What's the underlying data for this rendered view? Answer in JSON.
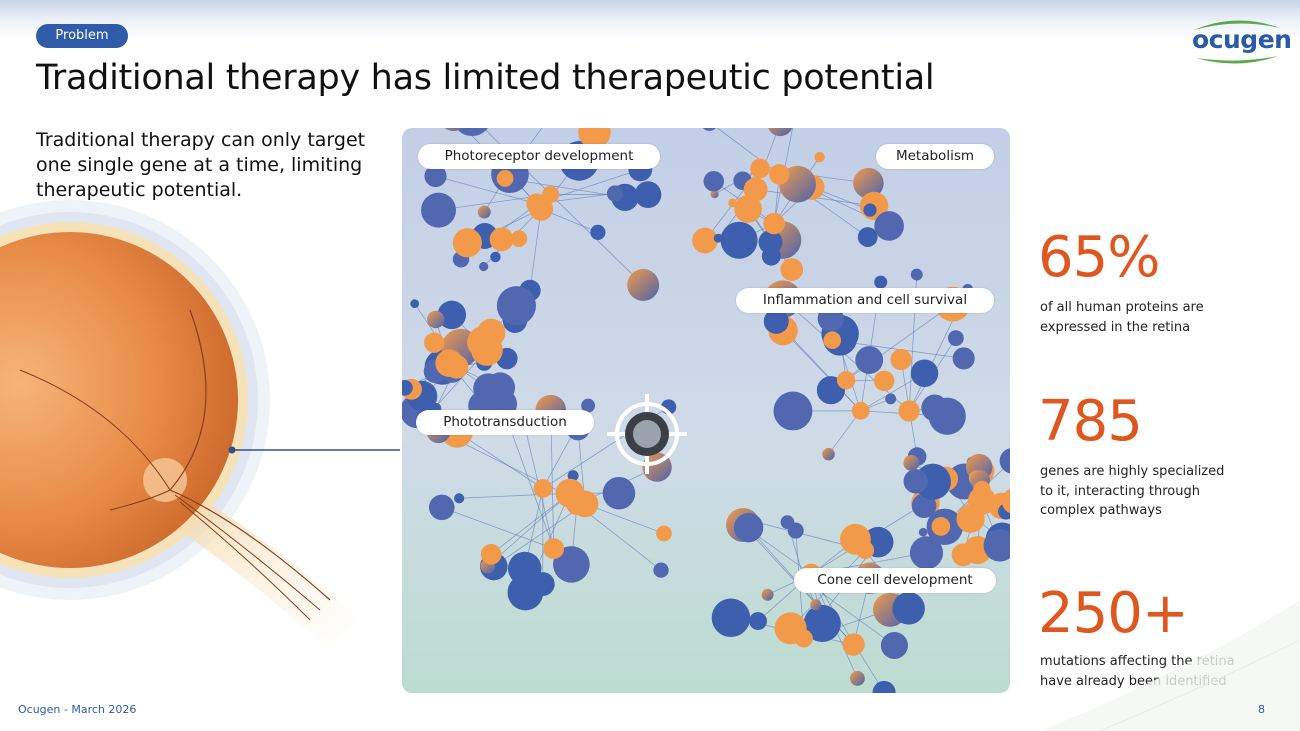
{
  "header": {
    "section_pill": "Problem",
    "title": "Traditional therapy has limited therapeutic potential"
  },
  "logo": {
    "text": "ocugen"
  },
  "intro": {
    "text": "Traditional therapy can only target one single gene at a time, limiting therapeutic potential."
  },
  "network": {
    "labels": {
      "photoreceptor": "Photoreceptor development",
      "metabolism": "Metabolism",
      "inflammation": "Inflammation and cell survival",
      "phototransduction": "Phototransduction",
      "cone": "Cone cell development"
    }
  },
  "stats": [
    {
      "value": "65%",
      "desc_line1": "of all human proteins are",
      "desc_line2": "expressed in the retina"
    },
    {
      "value": "785",
      "desc_line1": "genes are highly specialized",
      "desc_line2": "to it, interacting through",
      "desc_line3": "complex pathways"
    },
    {
      "value": "250+",
      "desc_line1": "mutations affecting the retina",
      "desc_line2": "have already been identified"
    }
  ],
  "footer": {
    "left": "Ocugen - March 2026",
    "page_number": "8"
  },
  "colors": {
    "accent": "#e0561f",
    "brand_blue": "#2f5ba8",
    "node_blue": "#3d5fae",
    "node_orange": "#f39a4a"
  },
  "icons": {
    "target": "crosshair-target-icon"
  }
}
